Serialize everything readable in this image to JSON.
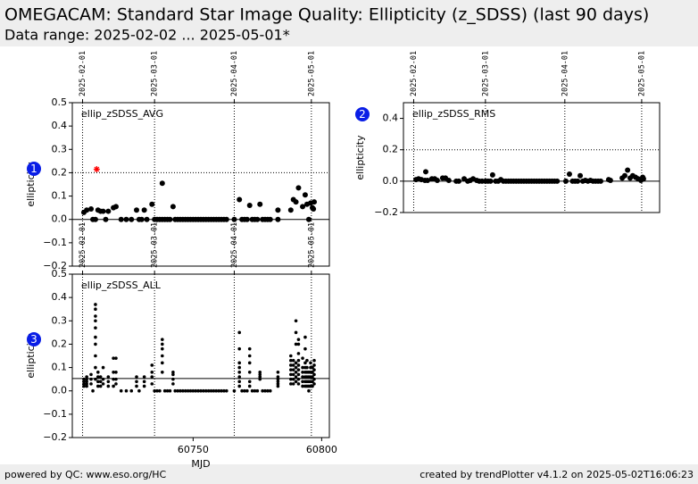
{
  "header": {
    "title": "OMEGACAM: Standard Star Image Quality: Ellipticity (z_SDSS) (last 90 days)",
    "subtitle": "Data range: 2025-02-02 ... 2025-05-01*"
  },
  "footer": {
    "left": "powered by QC: www.eso.org/HC",
    "right": "created by trendPlotter v4.1.2 on 2025-05-02T16:06:23"
  },
  "chart_data": [
    {
      "type": "scatter",
      "label": "ellip_zSDSS_AVG",
      "badge": "1",
      "ylabel": "ellipticity",
      "color": "#000000",
      "xlim": [
        60703,
        60803
      ],
      "ylim": [
        -0.2,
        0.5
      ],
      "yticks": [
        0.5,
        0.4,
        0.3,
        0.2,
        0.1,
        {
          "value": 0,
          "label": "0.0"
        },
        {
          "value": -0.1,
          "label": "−0.1"
        },
        {
          "value": -0.2,
          "label": "−0.2"
        }
      ],
      "date_ticks": [
        {
          "value": 60707,
          "label": "2025-02-01"
        },
        {
          "value": 60735,
          "label": "2025-03-01"
        },
        {
          "value": 60766,
          "label": "2025-04-01"
        },
        {
          "value": 60796,
          "label": "2025-05-01"
        }
      ],
      "hlines": [
        {
          "value": 0.2,
          "style": "dotted"
        },
        {
          "value": 0,
          "style": "solid"
        }
      ],
      "x": [
        60707.5,
        60708.6,
        60710.3,
        60711,
        60712,
        60713,
        60714,
        60715,
        60716,
        60717,
        60719,
        60720,
        60722,
        60724,
        60726,
        60728,
        60729,
        60730,
        60731,
        60732,
        60734,
        60735,
        60736,
        60737,
        60738,
        60738,
        60739,
        60740,
        60741,
        60742.2,
        60743,
        60744,
        60745,
        60746,
        60747,
        60748,
        60749,
        60750,
        60751,
        60752,
        60753,
        60754,
        60755,
        60756,
        60757,
        60758,
        60759,
        60760,
        60761,
        60762,
        60763,
        60766,
        60768,
        60769,
        60770,
        60771,
        60772,
        60773,
        60774,
        60775,
        60776,
        60777,
        60778,
        60779,
        60780,
        60783,
        60783,
        60788,
        60789,
        60790,
        60791,
        60792.6,
        60793.6,
        60794.3,
        60795,
        60795.7,
        60796.4,
        60796.8,
        60797.1
      ],
      "values": [
        0.03,
        0.04,
        0.045,
        0,
        0,
        0.04,
        0.035,
        0.035,
        0,
        0.035,
        0.05,
        0.055,
        0,
        0,
        0,
        0.04,
        0,
        0,
        0.04,
        0,
        0.065,
        0,
        0,
        0,
        0,
        0.155,
        0,
        0,
        0,
        0.055,
        0,
        0,
        0,
        0,
        0,
        0,
        0,
        0,
        0,
        0,
        0,
        0,
        0,
        0,
        0,
        0,
        0,
        0,
        0,
        0,
        0,
        0,
        0.085,
        0,
        0,
        0,
        0.06,
        0,
        0,
        0,
        0.065,
        0,
        0,
        0,
        0,
        0.04,
        0,
        0.04,
        0.085,
        0.075,
        0.135,
        0.055,
        0.105,
        0.065,
        0,
        0.07,
        0.05,
        0.045,
        0.075
      ],
      "highlight": {
        "x": [
          60712.5
        ],
        "values": [
          0.215
        ],
        "color": "#ff0000"
      }
    },
    {
      "type": "scatter",
      "label": "ellip_zSDSS_RMS",
      "badge": "2",
      "ylabel": "ellipticity",
      "color": "#000000",
      "xlim": [
        60703,
        60803
      ],
      "ylim": [
        -0.2,
        0.5
      ],
      "yticks": [
        0.4,
        0.2,
        {
          "value": 0,
          "label": "0.0"
        },
        {
          "value": -0.2,
          "label": "−0.2"
        }
      ],
      "date_ticks": [
        {
          "value": 60707,
          "label": "2025-02-01"
        },
        {
          "value": 60735,
          "label": "2025-03-01"
        },
        {
          "value": 60766,
          "label": "2025-04-01"
        },
        {
          "value": 60796,
          "label": "2025-05-01"
        }
      ],
      "hlines": [
        {
          "value": 0.2,
          "style": "dotted"
        },
        {
          "value": 0,
          "style": "solid"
        }
      ],
      "x": [
        60707.9,
        60708.9,
        60710,
        60711.4,
        60711.7,
        60712.4,
        60714.1,
        60715.2,
        60716.2,
        60718.3,
        60719.4,
        60720.7,
        60723.6,
        60724.6,
        60726.7,
        60728.1,
        60729.1,
        60730.2,
        60731.6,
        60732.6,
        60733.7,
        60735,
        60736,
        60737,
        60737.8,
        60739,
        60740,
        60741,
        60742,
        60743,
        60744,
        60745,
        60746,
        60747,
        60748,
        60749,
        60750,
        60751,
        60752,
        60753,
        60754,
        60755,
        60756,
        60757,
        60758,
        60759,
        60760,
        60761,
        60762,
        60763,
        60766.4,
        60767.8,
        60769,
        60770,
        60771,
        60772,
        60773,
        60774,
        60775,
        60776,
        60777,
        60778,
        60779,
        60780,
        60783.1,
        60783.8,
        60788.4,
        60789.4,
        60790.5,
        60791.5,
        60792.5,
        60793.6,
        60794.6,
        60795.7,
        60796.4,
        60796.7
      ],
      "values": [
        0.01,
        0.015,
        0.01,
        0.005,
        0.06,
        0.005,
        0.015,
        0.015,
        0.005,
        0.02,
        0.02,
        0.005,
        0,
        0,
        0.015,
        0,
        0.005,
        0.015,
        0.005,
        0,
        0,
        0,
        0,
        0,
        0.04,
        0,
        0,
        0.01,
        0,
        0,
        0,
        0,
        0,
        0,
        0,
        0,
        0,
        0,
        0,
        0,
        0,
        0,
        0,
        0,
        0,
        0,
        0,
        0,
        0,
        0,
        0,
        0.045,
        0,
        0,
        0,
        0.035,
        0,
        0.005,
        0,
        0.005,
        0,
        0,
        0,
        0,
        0.01,
        0.005,
        0.02,
        0.035,
        0.07,
        0.02,
        0.035,
        0.025,
        0.015,
        0.005,
        0.025,
        0.015
      ]
    },
    {
      "type": "scatter",
      "label": "ellip_zSDSS_ALL",
      "badge": "3",
      "ylabel": "ellipticity",
      "xlabel": "MJD",
      "color": "#000000",
      "xlim": [
        60703,
        60803
      ],
      "ylim": [
        -0.2,
        0.5
      ],
      "xticks": [
        60750,
        60800
      ],
      "yticks": [
        0.5,
        0.4,
        0.3,
        0.2,
        0.1,
        {
          "value": 0,
          "label": "0.0"
        },
        {
          "value": -0.1,
          "label": "−0.1"
        },
        {
          "value": -0.2,
          "label": "−0.2"
        }
      ],
      "date_ticks": [
        {
          "value": 60707,
          "label": "2025-02-01"
        },
        {
          "value": 60735,
          "label": "2025-03-01"
        },
        {
          "value": 60766,
          "label": "2025-04-01"
        },
        {
          "value": 60796,
          "label": "2025-05-01"
        }
      ],
      "hlines": [
        {
          "value": 0.053,
          "style": "solid"
        }
      ],
      "x": [
        60707.5,
        60708.6,
        60710.3,
        60711,
        60712,
        60713,
        60714,
        60715,
        60717,
        60719,
        60720,
        60722,
        60724,
        60726,
        60728,
        60729,
        60731,
        60734,
        60735,
        60736,
        60737,
        60738,
        60739,
        60740,
        60741,
        60742.2,
        60743,
        60744,
        60745,
        60746,
        60747,
        60748,
        60749,
        60750,
        60751,
        60752,
        60753,
        60754,
        60755,
        60756,
        60757,
        60758,
        60759,
        60760,
        60761,
        60762,
        60763,
        60766,
        60768,
        60769,
        60770,
        60771,
        60772,
        60773,
        60774,
        60775,
        60776,
        60777,
        60778,
        60779,
        60780,
        60783,
        60788,
        60789,
        60790,
        60791,
        60792.6,
        60793.6,
        60794.3,
        60795,
        60795.7,
        60796.4,
        60797.1
      ],
      "values": [
        [
          0.02,
          0.03,
          0.04,
          0.05
        ],
        [
          0.02,
          0.03,
          0.04,
          0.05,
          0.06
        ],
        [
          0.03,
          0.05,
          0.07
        ],
        [
          0
        ],
        [
          0.05,
          0.1,
          0.15,
          0.2,
          0.23,
          0.27,
          0.3,
          0.32,
          0.35,
          0.37
        ],
        [
          0.02,
          0.04,
          0.06,
          0.08
        ],
        [
          0.02,
          0.04,
          0.06
        ],
        [
          0.03,
          0.05,
          0.1
        ],
        [
          0.02,
          0.04,
          0.06
        ],
        [
          0.02,
          0.05,
          0.08,
          0.14
        ],
        [
          0.03,
          0.05,
          0.08,
          0.14
        ],
        [
          0
        ],
        [
          0
        ],
        [
          0
        ],
        [
          0.02,
          0.04,
          0.06
        ],
        [
          0
        ],
        [
          0.02,
          0.04,
          0.06
        ],
        [
          0.03,
          0.06,
          0.08,
          0.11
        ],
        [
          0
        ],
        [
          0
        ],
        [
          0
        ],
        [
          0.08,
          0.12,
          0.15,
          0.18,
          0.2,
          0.22
        ],
        [
          0
        ],
        [
          0
        ],
        [
          0
        ],
        [
          0.03,
          0.05,
          0.07,
          0.08
        ],
        [
          0
        ],
        [
          0
        ],
        [
          0
        ],
        [
          0
        ],
        [
          0
        ],
        [
          0
        ],
        [
          0
        ],
        [
          0
        ],
        [
          0
        ],
        [
          0
        ],
        [
          0
        ],
        [
          0
        ],
        [
          0
        ],
        [
          0
        ],
        [
          0
        ],
        [
          0
        ],
        [
          0
        ],
        [
          0
        ],
        [
          0
        ],
        [
          0
        ],
        [
          0
        ],
        [
          0
        ],
        [
          0.02,
          0.04,
          0.06,
          0.08,
          0.1,
          0.12,
          0.18,
          0.25
        ],
        [
          0
        ],
        [
          0
        ],
        [
          0
        ],
        [
          0.02,
          0.04,
          0.08,
          0.12,
          0.15,
          0.18
        ],
        [
          0
        ],
        [
          0
        ],
        [
          0
        ],
        [
          0.05,
          0.06,
          0.07,
          0.08
        ],
        [
          0
        ],
        [
          0
        ],
        [
          0
        ],
        [
          0
        ],
        [
          0.02,
          0.03,
          0.04,
          0.05,
          0.06,
          0.08
        ],
        [
          0.03,
          0.05,
          0.07,
          0.09,
          0.11,
          0.13,
          0.15
        ],
        [
          0.03,
          0.05,
          0.07,
          0.09,
          0.11,
          0.13
        ],
        [
          0.04,
          0.06,
          0.08,
          0.1,
          0.12,
          0.2,
          0.25,
          0.3
        ],
        [
          0.03,
          0.05,
          0.07,
          0.09,
          0.11,
          0.13,
          0.16,
          0.2,
          0.22
        ],
        [
          0.02,
          0.04,
          0.06,
          0.08,
          0.1,
          0.14
        ],
        [
          0.02,
          0.04,
          0.06,
          0.08,
          0.1,
          0.12,
          0.18,
          0.23
        ],
        [
          0.02,
          0.04,
          0.06,
          0.08,
          0.1,
          0.13
        ],
        [
          0,
          0.02,
          0.04,
          0.06,
          0.08
        ],
        [
          0.02,
          0.04,
          0.06,
          0.08,
          0.1,
          0.12
        ],
        [
          0.02,
          0.04,
          0.06,
          0.08,
          0.1
        ],
        [
          0.03,
          0.05,
          0.07,
          0.09,
          0.11,
          0.13
        ]
      ]
    }
  ]
}
